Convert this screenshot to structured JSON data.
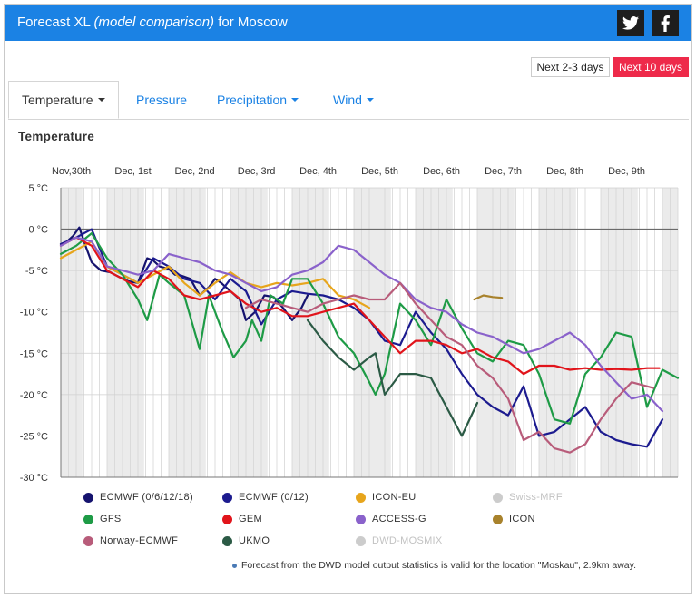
{
  "header": {
    "title_prefix": "Forecast XL",
    "title_italic": "(model comparison)",
    "title_suffix": "for Moscow",
    "twitter_icon": "twitter-icon",
    "facebook_icon": "facebook-icon"
  },
  "range_buttons": {
    "short": "Next 2-3 days",
    "long": "Next 10 days"
  },
  "tabs": [
    {
      "label": "Temperature"
    },
    {
      "label": "Pressure"
    },
    {
      "label": "Precipitation"
    },
    {
      "label": "Wind"
    }
  ],
  "section_title": "Temperature",
  "footnote": "Forecast from the DWD model output statistics is valid for the location \"Moskau\", 2.9km away.",
  "chart_data": {
    "type": "line",
    "title": "",
    "xlabel": "",
    "ylabel": "",
    "x_unit": "days since Nov 30 00:00",
    "xlim": [
      0,
      10
    ],
    "ylim": [
      -30,
      5
    ],
    "yticks": [
      5,
      0,
      -5,
      -10,
      -15,
      -20,
      -25,
      -30
    ],
    "ytick_labels": [
      "5 °C",
      "0 °C",
      "-5 °C",
      "-10 °C",
      "-15 °C",
      "-20 °C",
      "-25 °C",
      "-30 °C"
    ],
    "x_categories": [
      "Nov,30th",
      "Dec, 1st",
      "Dec, 2nd",
      "Dec, 3rd",
      "Dec, 4th",
      "Dec, 5th",
      "Dec, 6th",
      "Dec, 7th",
      "Dec, 8th",
      "Dec, 9th"
    ],
    "grid": true,
    "legend_position": "bottom",
    "series": [
      {
        "name": "ECMWF (0/6/12/18)",
        "color": "#15136e",
        "enabled": true,
        "x": [
          0,
          0.1,
          0.2,
          0.3,
          0.4,
          0.5,
          0.65,
          0.8,
          0.95,
          1.1,
          1.25,
          1.4,
          1.5,
          1.6,
          1.75,
          1.85,
          1.95,
          2.1,
          2.25,
          2.4,
          2.5,
          2.6,
          2.75,
          2.9,
          3.0,
          3.15,
          3.3,
          3.45,
          3.6,
          3.75,
          3.9,
          4.0
        ],
        "y": [
          -1.8,
          -1.5,
          -0.8,
          0.2,
          -2.0,
          -4.0,
          -5.0,
          -5.2,
          -5.8,
          -6.3,
          -6.5,
          -3.5,
          -3.8,
          -4.5,
          -4.8,
          -5.5,
          -5.6,
          -6.0,
          -8.0,
          -7.0,
          -6.0,
          -6.5,
          -7.5,
          -8.5,
          -11.0,
          -10.0,
          -8.0,
          -8.2,
          -9.5,
          -11.0,
          -9.5,
          -8.0
        ]
      },
      {
        "name": "ECMWF (0/12)",
        "color": "#1c1b8f",
        "enabled": true,
        "x": [
          0,
          0.25,
          0.5,
          0.75,
          1.0,
          1.25,
          1.5,
          1.75,
          2.0,
          2.25,
          2.5,
          2.75,
          3.0,
          3.25,
          3.5,
          3.75,
          4.0,
          4.25,
          4.5,
          4.75,
          5.0,
          5.25,
          5.5,
          5.75,
          6.0,
          6.25,
          6.5,
          6.75,
          7.0,
          7.25,
          7.5,
          7.75,
          8.0,
          8.25,
          8.5,
          8.75,
          9.0,
          9.25,
          9.5,
          9.75
        ],
        "y": [
          -1.8,
          -1.0,
          0.0,
          -4.5,
          -5.5,
          -6.5,
          -3.5,
          -4.5,
          -6.0,
          -6.5,
          -8.5,
          -6.0,
          -7.5,
          -11.5,
          -8.5,
          -7.5,
          -7.8,
          -8.0,
          -8.5,
          -9.5,
          -11.0,
          -13.5,
          -14.0,
          -10.0,
          -12.5,
          -14.5,
          -17.5,
          -20.0,
          -21.5,
          -22.5,
          -19.0,
          -25.0,
          -24.5,
          -23.0,
          -21.5,
          -24.5,
          -25.5,
          -26.0,
          -26.3,
          -23.0
        ]
      },
      {
        "name": "ICON-EU",
        "color": "#e7a51c",
        "enabled": true,
        "x": [
          0,
          0.25,
          0.5,
          0.75,
          1.0,
          1.25,
          1.5,
          1.75,
          2.0,
          2.25,
          2.5,
          2.75,
          3.0,
          3.25,
          3.5,
          3.75,
          4.0,
          4.25,
          4.5,
          4.75,
          5.0
        ],
        "y": [
          -3.5,
          -2.5,
          -1.5,
          -4.5,
          -5.5,
          -6.5,
          -5.5,
          -4.5,
          -6.5,
          -8.0,
          -6.5,
          -5.2,
          -6.5,
          -7.0,
          -6.5,
          -6.8,
          -6.5,
          -6.0,
          -8.0,
          -8.5,
          -9.5
        ]
      },
      {
        "name": "Swiss-MRF",
        "color": "#cccccc",
        "enabled": false,
        "x": [],
        "y": []
      },
      {
        "name": "GFS",
        "color": "#1e9b46",
        "enabled": true,
        "x": [
          0,
          0.25,
          0.5,
          0.75,
          1.0,
          1.25,
          1.4,
          1.6,
          1.75,
          2.0,
          2.25,
          2.4,
          2.6,
          2.8,
          3.0,
          3.1,
          3.25,
          3.4,
          3.6,
          3.75,
          4.0,
          4.25,
          4.5,
          4.75,
          5.0,
          5.1,
          5.25,
          5.5,
          5.75,
          6.0,
          6.25,
          6.5,
          6.75,
          7.0,
          7.25,
          7.5,
          7.75,
          8.0,
          8.25,
          8.5,
          8.75,
          9.0,
          9.25,
          9.5,
          9.75,
          10.0
        ],
        "y": [
          -3.0,
          -2.0,
          -0.5,
          -3.5,
          -5.5,
          -8.5,
          -11.0,
          -5.5,
          -6.5,
          -8.0,
          -14.5,
          -8.0,
          -12.0,
          -15.5,
          -13.5,
          -11.0,
          -13.5,
          -8.0,
          -9.0,
          -6.0,
          -6.0,
          -9.0,
          -13.0,
          -15.0,
          -18.5,
          -20.0,
          -17.5,
          -9.0,
          -11.0,
          -14.0,
          -8.5,
          -12.0,
          -15.0,
          -16.0,
          -13.5,
          -14.0,
          -17.5,
          -23.0,
          -23.5,
          -17.5,
          -15.5,
          -12.5,
          -13.0,
          -21.5,
          -17.0,
          -18.0
        ]
      },
      {
        "name": "GEM",
        "color": "#e1141b",
        "enabled": true,
        "x": [
          0,
          0.25,
          0.5,
          0.75,
          1.0,
          1.25,
          1.5,
          1.75,
          2.0,
          2.25,
          2.5,
          2.75,
          3.0,
          3.25,
          3.5,
          3.75,
          4.0,
          4.25,
          4.5,
          4.75,
          5.0,
          5.25,
          5.5,
          5.75,
          6.0,
          6.25,
          6.5,
          6.75,
          7.0,
          7.25,
          7.5,
          7.75,
          8.0,
          8.25,
          8.5,
          8.75,
          9.0,
          9.25,
          9.5,
          9.7
        ],
        "y": [
          -2.0,
          -1.0,
          -2.0,
          -5.0,
          -6.0,
          -7.0,
          -5.0,
          -6.0,
          -8.0,
          -8.5,
          -8.0,
          -7.5,
          -9.0,
          -10.0,
          -9.5,
          -10.5,
          -10.5,
          -10.0,
          -9.5,
          -9.0,
          -11.0,
          -13.0,
          -15.0,
          -13.5,
          -13.5,
          -14.0,
          -15.0,
          -14.5,
          -15.5,
          -16.0,
          -17.5,
          -16.5,
          -16.5,
          -17.0,
          -16.8,
          -17.0,
          -16.9,
          -17.0,
          -16.8,
          -16.8
        ]
      },
      {
        "name": "ACCESS-G",
        "color": "#8a62cb",
        "enabled": true,
        "x": [
          0,
          0.25,
          0.5,
          0.75,
          1.0,
          1.25,
          1.5,
          1.75,
          2.0,
          2.25,
          2.5,
          2.75,
          3.0,
          3.25,
          3.5,
          3.75,
          4.0,
          4.25,
          4.5,
          4.75,
          5.0,
          5.25,
          5.5,
          5.75,
          6.0,
          6.25,
          6.5,
          6.75,
          7.0,
          7.25,
          7.5,
          7.75,
          8.0,
          8.25,
          8.5,
          8.75,
          9.0,
          9.25,
          9.5,
          9.75
        ],
        "y": [
          -2.0,
          -1.0,
          -1.5,
          -4.5,
          -5.0,
          -5.5,
          -5.0,
          -3.0,
          -3.5,
          -4.0,
          -5.0,
          -5.5,
          -6.5,
          -7.5,
          -7.0,
          -5.5,
          -5.0,
          -4.0,
          -2.0,
          -2.5,
          -4.0,
          -5.5,
          -6.5,
          -8.5,
          -9.5,
          -10.0,
          -11.5,
          -12.5,
          -13.0,
          -14.0,
          -15.0,
          -14.5,
          -13.5,
          -12.5,
          -14.0,
          -16.5,
          -18.5,
          -20.5,
          -20.0,
          -22.0
        ]
      },
      {
        "name": "ICON",
        "color": "#a8822c",
        "enabled": true,
        "x": [
          6.7,
          6.85,
          7.0,
          7.15
        ],
        "y": [
          -8.5,
          -8.0,
          -8.2,
          -8.3
        ]
      },
      {
        "name": "Norway-ECMWF",
        "color": "#b85c7a",
        "enabled": true,
        "x": [
          3.0,
          3.25,
          3.5,
          3.75,
          4.0,
          4.25,
          4.5,
          4.75,
          5.0,
          5.25,
          5.5,
          5.75,
          6.0,
          6.25,
          6.5,
          6.75,
          7.0,
          7.25,
          7.5,
          7.75,
          8.0,
          8.25,
          8.5,
          8.75,
          9.0,
          9.25,
          9.5,
          9.6
        ],
        "y": [
          -9.5,
          -8.5,
          -9.0,
          -9.5,
          -10.0,
          -9.0,
          -8.5,
          -8.0,
          -8.5,
          -8.5,
          -6.5,
          -9.0,
          -11.0,
          -13.0,
          -14.0,
          -16.5,
          -18.0,
          -20.5,
          -25.5,
          -24.5,
          -26.5,
          -27.0,
          -26.0,
          -23.0,
          -20.5,
          -18.5,
          -19.0,
          -19.2
        ]
      },
      {
        "name": "UKMO",
        "color": "#2b5a45",
        "enabled": true,
        "x": [
          4.0,
          4.25,
          4.5,
          4.75,
          5.0,
          5.1,
          5.25,
          5.5,
          5.75,
          6.0,
          6.25,
          6.5,
          6.75
        ],
        "y": [
          -11.0,
          -13.5,
          -15.5,
          -17.0,
          -15.5,
          -15.0,
          -20.0,
          -17.5,
          -17.5,
          -18.0,
          -21.5,
          -25.0,
          -21.0
        ]
      },
      {
        "name": "DWD-MOSMIX",
        "color": "#cccccc",
        "enabled": false,
        "x": [],
        "y": []
      }
    ]
  }
}
